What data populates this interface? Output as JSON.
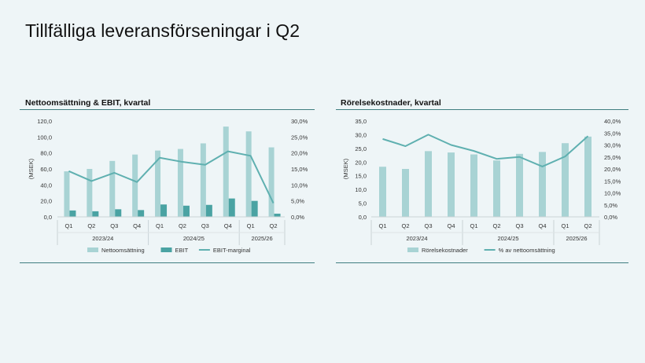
{
  "page": {
    "title": "Tillfälliga leveransförseningar i Q2"
  },
  "colors": {
    "bar_light": "#a8d3d4",
    "bar_dark": "#4aa3a3",
    "line": "#5fb0b0",
    "rule": "#3f7d80"
  },
  "chart_data": [
    {
      "type": "bar",
      "title": "Nettoomsättning & EBIT, kvartal",
      "ylabel": "(MSEK)",
      "ylim": [
        0,
        120
      ],
      "y2lim": [
        0,
        30
      ],
      "yticks": [
        "0,0",
        "20,0",
        "40,0",
        "60,0",
        "80,0",
        "100,0",
        "120,0"
      ],
      "y2ticks": [
        "0,0%",
        "5,0%",
        "10,0%",
        "15,0%",
        "20,0%",
        "25,0%",
        "30,0%"
      ],
      "categories": [
        "Q1",
        "Q2",
        "Q3",
        "Q4",
        "Q1",
        "Q2",
        "Q3",
        "Q4",
        "Q1",
        "Q2"
      ],
      "groups": [
        {
          "label": "2023/24",
          "start": 0,
          "end": 3
        },
        {
          "label": "2024/25",
          "start": 4,
          "end": 7
        },
        {
          "label": "2025/26",
          "start": 8,
          "end": 9
        }
      ],
      "series": [
        {
          "name": "Nettoomsättning",
          "kind": "bar",
          "axis": "left",
          "values": [
            57,
            60,
            70,
            78,
            83,
            85,
            92,
            113,
            107,
            87
          ]
        },
        {
          "name": "EBIT",
          "kind": "bar",
          "axis": "left",
          "values": [
            8,
            7,
            9.5,
            8.5,
            15.5,
            14,
            15,
            23,
            20,
            4
          ]
        },
        {
          "name": "EBIT-marginal",
          "kind": "line",
          "axis": "right",
          "values": [
            14.3,
            11.2,
            13.8,
            10.9,
            18.5,
            17.2,
            16.3,
            20.5,
            19.1,
            4.3
          ]
        }
      ],
      "legend": [
        "Nettoomsättning",
        "EBIT",
        "EBIT-marginal"
      ]
    },
    {
      "type": "bar",
      "title": "Rörelsekostnader, kvartal",
      "ylabel": "(MSEK)",
      "ylim": [
        0,
        35
      ],
      "y2lim": [
        0,
        40
      ],
      "yticks": [
        "0,0",
        "5,0",
        "10,0",
        "15,0",
        "20,0",
        "25,0",
        "30,0",
        "35,0"
      ],
      "y2ticks": [
        "0,0%",
        "5,0%",
        "10,0%",
        "15,0%",
        "20,0%",
        "25,0%",
        "30,0%",
        "35,0%",
        "40,0%"
      ],
      "categories": [
        "Q1",
        "Q2",
        "Q3",
        "Q4",
        "Q1",
        "Q2",
        "Q3",
        "Q4",
        "Q1",
        "Q2"
      ],
      "groups": [
        {
          "label": "2023/24",
          "start": 0,
          "end": 3
        },
        {
          "label": "2024/25",
          "start": 4,
          "end": 7
        },
        {
          "label": "2025/26",
          "start": 8,
          "end": 9
        }
      ],
      "series": [
        {
          "name": "Rörelsekostnader",
          "kind": "bar",
          "axis": "left",
          "values": [
            18.3,
            17.5,
            24,
            23.5,
            22.8,
            20.6,
            23,
            23.7,
            26.9,
            29.3
          ]
        },
        {
          "name": "% av nettoomsättning",
          "kind": "line",
          "axis": "right",
          "values": [
            32.5,
            29.5,
            34.3,
            30,
            27.5,
            24.2,
            25,
            21,
            25.2,
            33.7
          ]
        }
      ],
      "legend": [
        "Rörelsekostnader",
        "% av nettoomsättning"
      ]
    }
  ]
}
